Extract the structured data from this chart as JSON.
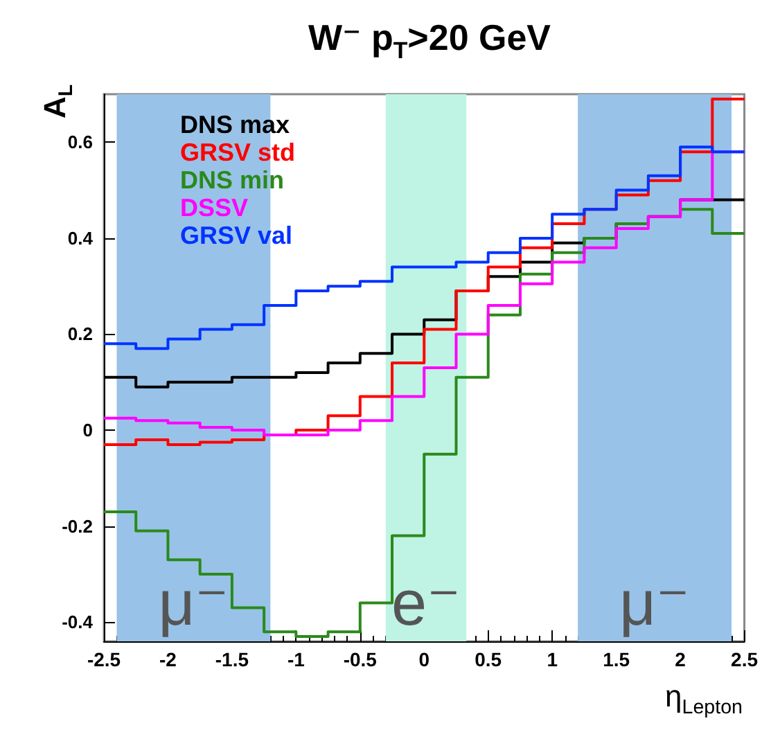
{
  "chart_data": {
    "type": "histogram",
    "title": "W⁻  p$_{T}$>20 GeV",
    "xlabel": "η$_{Lepton}$",
    "ylabel": "A$_{L}$",
    "bins": [
      -2.5,
      -2.25,
      -2,
      -1.75,
      -1.5,
      -1.25,
      -1,
      -0.75,
      -0.5,
      -0.25,
      0,
      0.25,
      0.5,
      0.75,
      1,
      1.25,
      1.5,
      1.75,
      2,
      2.25,
      2.5
    ],
    "series": [
      {
        "name": "DNS max",
        "color": "#000000",
        "values": [
          0.11,
          0.09,
          0.1,
          0.1,
          0.11,
          0.11,
          0.12,
          0.14,
          0.16,
          0.2,
          0.23,
          0.29,
          0.32,
          0.35,
          0.39,
          0.4,
          0.43,
          0.445,
          0.48,
          0.48
        ]
      },
      {
        "name": "GRSV std",
        "color": "#ff0000",
        "values": [
          -0.03,
          -0.02,
          -0.03,
          -0.025,
          -0.02,
          -0.01,
          0.0,
          0.03,
          0.07,
          0.14,
          0.21,
          0.29,
          0.34,
          0.38,
          0.43,
          0.46,
          0.49,
          0.52,
          0.58,
          0.69
        ]
      },
      {
        "name": "DNS min",
        "color": "#2a8a1a",
        "values": [
          -0.17,
          -0.21,
          -0.27,
          -0.3,
          -0.37,
          -0.42,
          -0.43,
          -0.42,
          -0.36,
          -0.22,
          -0.05,
          0.11,
          0.24,
          0.325,
          0.37,
          0.4,
          0.43,
          0.445,
          0.46,
          0.41
        ]
      },
      {
        "name": "DSSV",
        "color": "#ff00ff",
        "values": [
          0.025,
          0.02,
          0.015,
          0.006,
          0.0,
          -0.01,
          -0.01,
          0.0,
          0.02,
          0.07,
          0.13,
          0.2,
          0.26,
          0.305,
          0.35,
          0.38,
          0.42,
          0.445,
          0.48,
          0.58
        ]
      },
      {
        "name": "GRSV val",
        "color": "#0033ff",
        "values": [
          0.18,
          0.17,
          0.19,
          0.21,
          0.22,
          0.26,
          0.29,
          0.3,
          0.31,
          0.34,
          0.34,
          0.35,
          0.37,
          0.4,
          0.45,
          0.46,
          0.5,
          0.53,
          0.59,
          0.58
        ]
      }
    ],
    "bands": [
      {
        "axis": "x",
        "from": -2.4,
        "to": -1.2,
        "color": "#99c2e8"
      },
      {
        "axis": "x",
        "from": -0.3,
        "to": 0.33,
        "color": "#bff3e4"
      },
      {
        "axis": "x",
        "from": 1.2,
        "to": 2.4,
        "color": "#99c2e8"
      }
    ],
    "annotations": [
      "μ⁻",
      "e⁻",
      "μ⁻"
    ],
    "xlim": [
      -2.5,
      2.5
    ],
    "xticks": [
      -2.5,
      -2,
      -1.5,
      -1,
      -0.5,
      0,
      0.5,
      1,
      1.5,
      2,
      2.5
    ],
    "ylim": [
      -0.44,
      0.7
    ],
    "yticks": [
      -0.4,
      -0.2,
      0,
      0.2,
      0.4,
      0.6
    ],
    "grid": false,
    "legend": "top left"
  }
}
